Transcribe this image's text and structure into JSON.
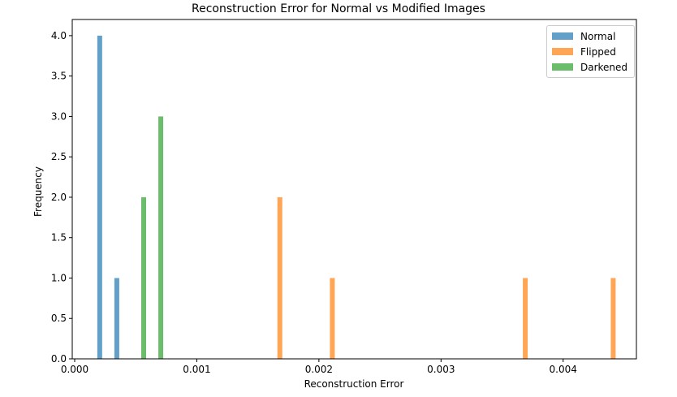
{
  "chart_data": {
    "type": "bar",
    "title": "Reconstruction Error for Normal vs Modified Images",
    "xlabel": "Reconstruction Error",
    "ylabel": "Frequency",
    "xlim": [
      -2e-05,
      0.0046
    ],
    "ylim": [
      0,
      4.2
    ],
    "xticks": [
      "0.000",
      "0.001",
      "0.002",
      "0.003",
      "0.004"
    ],
    "xtick_values": [
      0,
      0.001,
      0.002,
      0.003,
      0.004
    ],
    "yticks": [
      "0.0",
      "0.5",
      "1.0",
      "1.5",
      "2.0",
      "2.5",
      "3.0",
      "3.5",
      "4.0"
    ],
    "ytick_values": [
      0,
      0.5,
      1,
      1.5,
      2,
      2.5,
      3,
      3.5,
      4
    ],
    "grid": false,
    "legend_position": "top-right",
    "series": [
      {
        "name": "Normal",
        "color": "#1f77b4",
        "bins": [
          {
            "x": 0.000205,
            "count": 4
          },
          {
            "x": 0.000345,
            "count": 1
          }
        ]
      },
      {
        "name": "Flipped",
        "color": "#ff7f0e",
        "bins": [
          {
            "x": 0.00168,
            "count": 2
          },
          {
            "x": 0.00211,
            "count": 1
          },
          {
            "x": 0.00369,
            "count": 1
          },
          {
            "x": 0.00441,
            "count": 1
          }
        ]
      },
      {
        "name": "Darkened",
        "color": "#2ca02c",
        "bins": [
          {
            "x": 0.000565,
            "count": 2
          },
          {
            "x": 0.000705,
            "count": 3
          }
        ]
      }
    ]
  }
}
